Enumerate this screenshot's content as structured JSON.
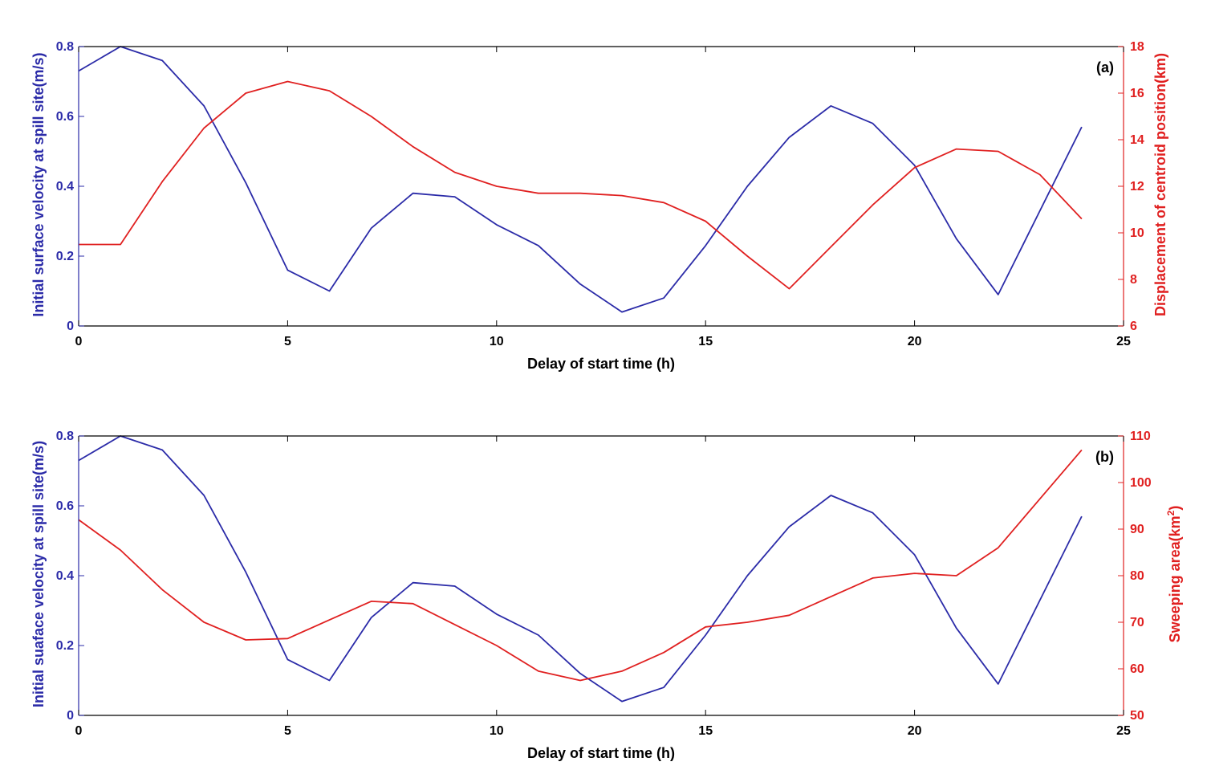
{
  "figure": {
    "background": "#ffffff"
  },
  "chart_data": [
    {
      "type": "line",
      "panel_label": "(a)",
      "xlabel": "Delay of start time (h)",
      "xlim": [
        0,
        25
      ],
      "xticks": [
        0,
        5,
        10,
        15,
        20,
        25
      ],
      "x": [
        0,
        1,
        2,
        3,
        4,
        5,
        6,
        7,
        8,
        9,
        10,
        11,
        12,
        13,
        14,
        15,
        16,
        17,
        18,
        19,
        20,
        21,
        22,
        23,
        24
      ],
      "left_axis": {
        "label": "Initial surface velocity at spill site(m/s)",
        "ylim": [
          0,
          0.8
        ],
        "ticks": [
          0,
          0.2,
          0.4,
          0.6,
          0.8
        ],
        "tick_labels": [
          "0",
          "0.2",
          "0.4",
          "0.6",
          "0.8"
        ],
        "color": "#2b2ba8"
      },
      "right_axis": {
        "label": "Displacement of centroid position(km)",
        "ylim": [
          6,
          18
        ],
        "ticks": [
          6,
          8,
          10,
          12,
          14,
          16,
          18
        ],
        "tick_labels": [
          "6",
          "8",
          "10",
          "12",
          "14",
          "16",
          "18"
        ],
        "color": "#e02020"
      },
      "series": [
        {
          "axis": "left",
          "color": "#2b2ba8",
          "values": [
            0.73,
            0.8,
            0.76,
            0.63,
            0.41,
            0.16,
            0.1,
            0.28,
            0.38,
            0.37,
            0.29,
            0.23,
            0.12,
            0.04,
            0.08,
            0.23,
            0.4,
            0.54,
            0.63,
            0.58,
            0.46,
            0.25,
            0.09,
            0.33,
            0.57
          ]
        },
        {
          "axis": "right",
          "color": "#e02020",
          "values": [
            9.5,
            9.5,
            12.2,
            14.5,
            16.0,
            16.5,
            16.1,
            15.0,
            13.7,
            12.6,
            12.0,
            11.7,
            11.7,
            11.6,
            11.3,
            10.5,
            9.0,
            7.6,
            9.4,
            11.2,
            12.8,
            13.6,
            13.5,
            12.5,
            10.6
          ]
        }
      ],
      "grid": false
    },
    {
      "type": "line",
      "panel_label": "(b)",
      "xlabel": "Delay of start time (h)",
      "xlim": [
        0,
        25
      ],
      "xticks": [
        0,
        5,
        10,
        15,
        20,
        25
      ],
      "x": [
        0,
        1,
        2,
        3,
        4,
        5,
        6,
        7,
        8,
        9,
        10,
        11,
        12,
        13,
        14,
        15,
        16,
        17,
        18,
        19,
        20,
        21,
        22,
        23,
        24
      ],
      "left_axis": {
        "label": "Initial suaface velocity at spill site(m/s)",
        "ylim": [
          0,
          0.8
        ],
        "ticks": [
          0,
          0.2,
          0.4,
          0.6,
          0.8
        ],
        "tick_labels": [
          "0",
          "0.2",
          "0.4",
          "0.6",
          "0.8"
        ],
        "color": "#2b2ba8"
      },
      "right_axis": {
        "label": "Sweeping area(km",
        "label_sup": "2",
        "label_end": ")",
        "ylim": [
          50,
          110
        ],
        "ticks": [
          50,
          60,
          70,
          80,
          90,
          100,
          110
        ],
        "tick_labels": [
          "50",
          "60",
          "70",
          "80",
          "90",
          "100",
          "110"
        ],
        "color": "#e02020"
      },
      "series": [
        {
          "axis": "left",
          "color": "#2b2ba8",
          "values": [
            0.73,
            0.8,
            0.76,
            0.63,
            0.41,
            0.16,
            0.1,
            0.28,
            0.38,
            0.37,
            0.29,
            0.23,
            0.12,
            0.04,
            0.08,
            0.23,
            0.4,
            0.54,
            0.63,
            0.58,
            0.46,
            0.25,
            0.09,
            0.33,
            0.57
          ]
        },
        {
          "axis": "right",
          "color": "#e02020",
          "values": [
            92,
            85.5,
            77,
            70,
            66.2,
            66.5,
            70.5,
            74.5,
            74,
            69.5,
            65,
            59.5,
            57.5,
            59.5,
            63.5,
            69,
            70,
            71.5,
            75.5,
            79.5,
            80.5,
            80,
            86,
            96.5,
            107
          ]
        }
      ],
      "grid": false
    }
  ]
}
